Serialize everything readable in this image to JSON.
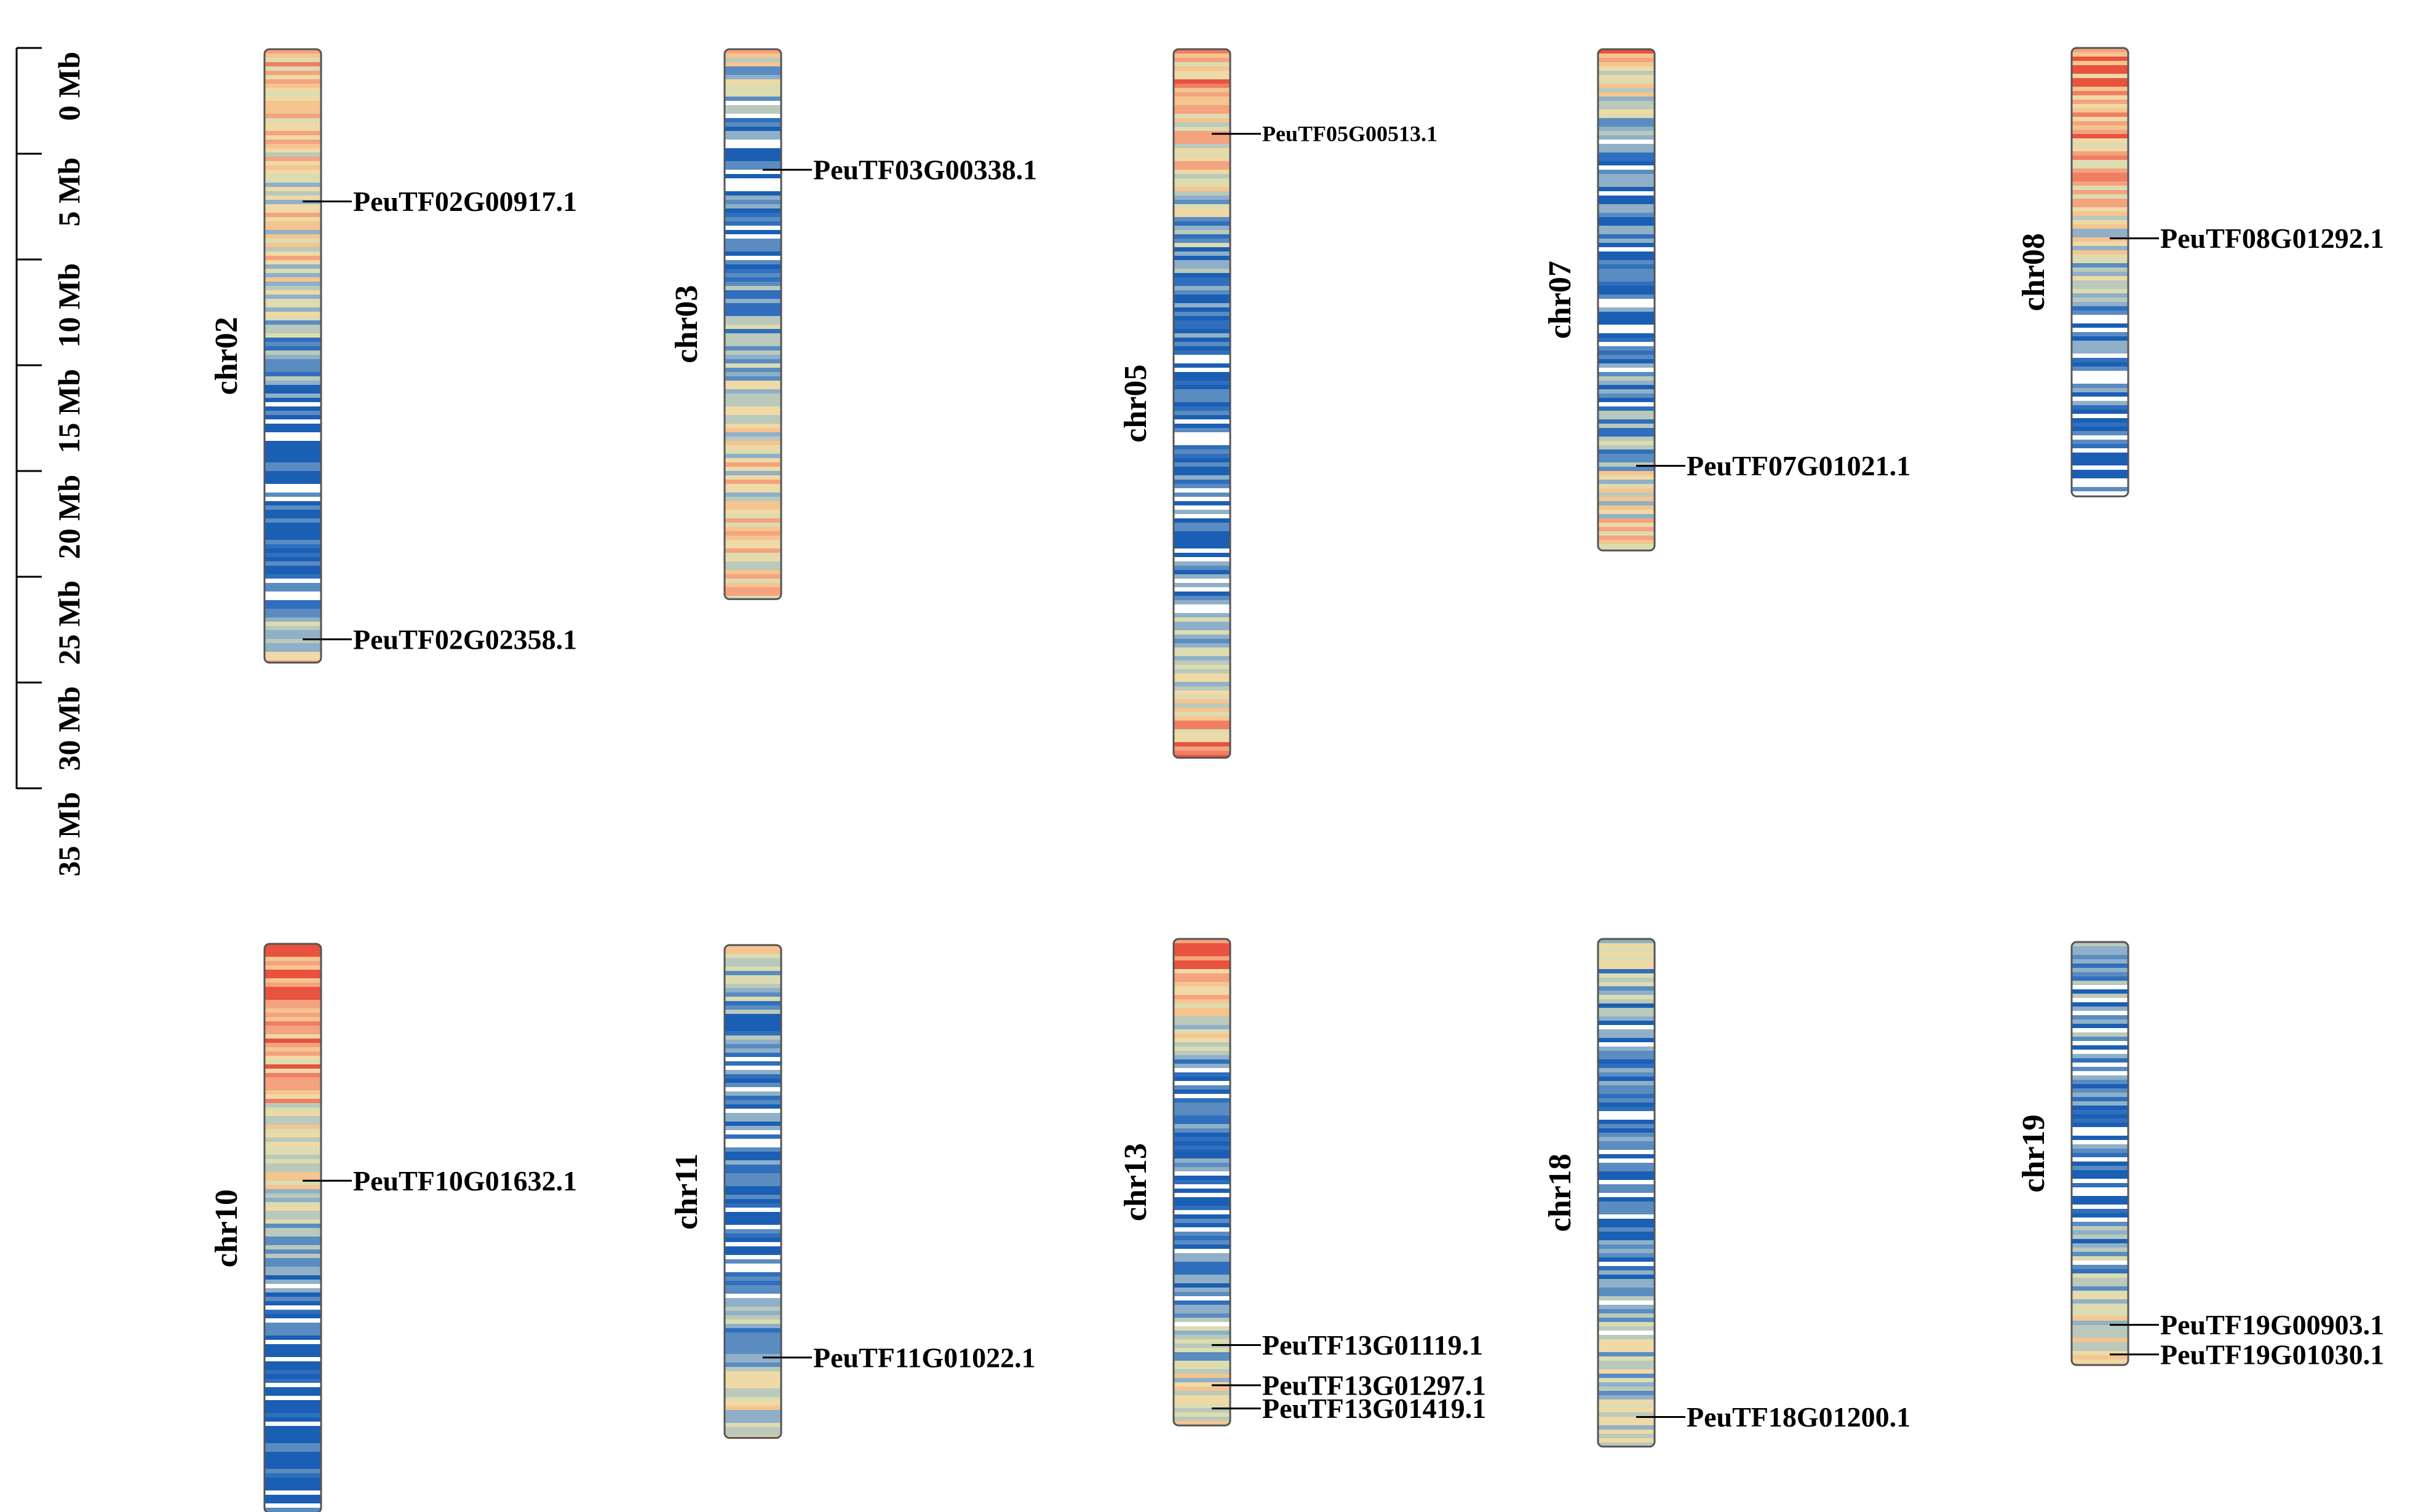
{
  "scale_bar": {
    "ticks": [
      "0 Mb",
      "5 Mb",
      "10 Mb",
      "15 Mb",
      "20 Mb",
      "25 Mb",
      "30 Mb",
      "35 Mb"
    ]
  },
  "density_colors": [
    "#1a5fb4",
    "#2f6fbd",
    "#5a8cc2",
    "#8fb0c8",
    "#b9c9bb",
    "#dcdcb0",
    "#efd9a6",
    "#f5c48f",
    "#f4a37e",
    "#f07e62",
    "#e8523f"
  ],
  "chromosomes": [
    {
      "name": "chr02",
      "length_mb": 29.0,
      "seed": 2,
      "profile": [
        [
          0,
          0.7
        ],
        [
          0.24,
          0.55
        ],
        [
          0.42,
          0.5
        ],
        [
          0.52,
          0.2
        ],
        [
          0.62,
          0.05
        ],
        [
          0.72,
          0.02
        ],
        [
          0.88,
          0.2
        ],
        [
          1,
          0.55
        ]
      ],
      "genes": [
        {
          "id": "PeuTF02G00917.1",
          "pos_mb": 7.2
        },
        {
          "id": "PeuTF02G02358.1",
          "pos_mb": 27.9
        }
      ]
    },
    {
      "name": "chr03",
      "length_mb": 26.0,
      "seed": 3,
      "profile": [
        [
          0,
          0.55
        ],
        [
          0.08,
          0.3
        ],
        [
          0.18,
          0.05
        ],
        [
          0.35,
          0.1
        ],
        [
          0.5,
          0.3
        ],
        [
          0.65,
          0.55
        ],
        [
          1,
          0.6
        ]
      ],
      "genes": [
        {
          "id": "PeuTF03G00338.1",
          "pos_mb": 5.7
        }
      ]
    },
    {
      "name": "chr05",
      "length_mb": 33.5,
      "seed": 5,
      "profile": [
        [
          0,
          0.75
        ],
        [
          0.18,
          0.55
        ],
        [
          0.28,
          0.25
        ],
        [
          0.4,
          0.08
        ],
        [
          0.6,
          0.05
        ],
        [
          0.75,
          0.2
        ],
        [
          0.88,
          0.5
        ],
        [
          1,
          0.85
        ]
      ],
      "genes": [
        {
          "id": "PeuTF05G00513.1",
          "pos_mb": 4.0,
          "small": true
        }
      ]
    },
    {
      "name": "chr07",
      "length_mb": 23.7,
      "seed": 7,
      "profile": [
        [
          0,
          0.75
        ],
        [
          0.1,
          0.5
        ],
        [
          0.2,
          0.15
        ],
        [
          0.5,
          0.08
        ],
        [
          0.7,
          0.25
        ],
        [
          0.85,
          0.45
        ],
        [
          1,
          0.6
        ]
      ],
      "genes": [
        {
          "id": "PeuTF07G01021.1",
          "pos_mb": 19.7
        }
      ]
    },
    {
      "name": "chr08",
      "length_mb": 21.2,
      "seed": 8,
      "profile": [
        [
          0,
          0.8
        ],
        [
          0.2,
          0.75
        ],
        [
          0.4,
          0.55
        ],
        [
          0.55,
          0.3
        ],
        [
          0.68,
          0.1
        ],
        [
          1,
          0.05
        ]
      ],
      "genes": [
        {
          "id": "PeuTF08G01292.1",
          "pos_mb": 9.0
        }
      ]
    },
    {
      "name": "chr10",
      "length_mb": 26.9,
      "seed": 10,
      "profile": [
        [
          0,
          0.92
        ],
        [
          0.2,
          0.75
        ],
        [
          0.38,
          0.55
        ],
        [
          0.52,
          0.4
        ],
        [
          0.6,
          0.12
        ],
        [
          0.75,
          0.03
        ],
        [
          1,
          0.05
        ]
      ],
      "genes": [
        {
          "id": "PeuTF10G01632.1",
          "pos_mb": 11.2
        }
      ]
    },
    {
      "name": "chr11",
      "length_mb": 23.3,
      "seed": 11,
      "profile": [
        [
          0,
          0.5
        ],
        [
          0.1,
          0.3
        ],
        [
          0.3,
          0.1
        ],
        [
          0.6,
          0.08
        ],
        [
          0.75,
          0.3
        ],
        [
          0.9,
          0.5
        ],
        [
          1,
          0.55
        ]
      ],
      "genes": [
        {
          "id": "PeuTF11G01022.1",
          "pos_mb": 19.5
        }
      ]
    },
    {
      "name": "chr13",
      "length_mb": 23.0,
      "seed": 13,
      "profile": [
        [
          0,
          0.8
        ],
        [
          0.15,
          0.55
        ],
        [
          0.3,
          0.15
        ],
        [
          0.6,
          0.05
        ],
        [
          0.8,
          0.3
        ],
        [
          0.92,
          0.5
        ],
        [
          1,
          0.55
        ]
      ],
      "genes": [
        {
          "id": "PeuTF13G01119.1",
          "pos_mb": 19.2
        },
        {
          "id": "PeuTF13G01297.1",
          "pos_mb": 21.1
        },
        {
          "id": "PeuTF13G01419.1",
          "pos_mb": 22.2
        }
      ]
    },
    {
      "name": "chr18",
      "length_mb": 24.0,
      "seed": 18,
      "profile": [
        [
          0,
          0.5
        ],
        [
          0.1,
          0.3
        ],
        [
          0.2,
          0.08
        ],
        [
          0.55,
          0.05
        ],
        [
          0.75,
          0.3
        ],
        [
          0.9,
          0.5
        ],
        [
          1,
          0.55
        ]
      ],
      "genes": [
        {
          "id": "PeuTF18G01200.1",
          "pos_mb": 22.6
        }
      ]
    },
    {
      "name": "chr19",
      "length_mb": 20.0,
      "seed": 19,
      "profile": [
        [
          0,
          0.35
        ],
        [
          0.1,
          0.25
        ],
        [
          0.3,
          0.12
        ],
        [
          0.6,
          0.05
        ],
        [
          0.75,
          0.3
        ],
        [
          0.9,
          0.5
        ],
        [
          1,
          0.55
        ]
      ],
      "genes": [
        {
          "id": "PeuTF19G00903.1",
          "pos_mb": 18.1
        },
        {
          "id": "PeuTF19G01030.1",
          "pos_mb": 19.5
        }
      ]
    }
  ]
}
